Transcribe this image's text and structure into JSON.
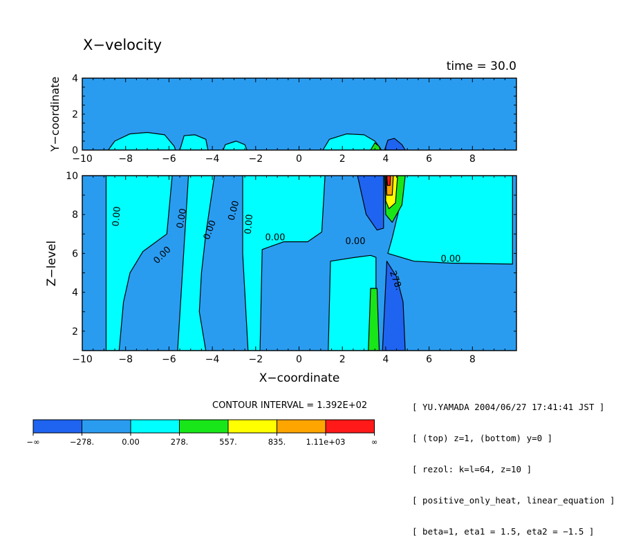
{
  "title": "X−velocity",
  "time_label": "time = 30.0",
  "contour_interval_label": "CONTOUR INTERVAL = 1.392E+02",
  "info_lines": [
    "[ YU.YAMADA 2004/06/27 17:41:41 JST ]",
    "[ (top) z=1, (bottom) y=0 ]",
    "[ rezol: k=l=64, z=10 ]",
    "[ positive_only_heat, linear_equation ]",
    "[ beta=1, eta1 = 1.5, eta2 = −1.5 ]"
  ],
  "colors": {
    "dark_blue": "#1e64f0",
    "mid_blue": "#2a9cf0",
    "cyan": "#00ffff",
    "green": "#19e619",
    "yellow": "#ffff00",
    "orange": "#ffa500",
    "red": "#ff1919"
  },
  "chart_data": [
    {
      "type": "heatmap",
      "panel": "top",
      "xlabel": "",
      "ylabel": "Y−coordinate",
      "xlim": [
        -10,
        10
      ],
      "ylim": [
        0,
        4
      ],
      "xticks": [
        "−10",
        "−8",
        "−6",
        "−4",
        "−2",
        "0",
        "2",
        "4",
        "6",
        "8"
      ],
      "xtick_values": [
        -10,
        -8,
        -6,
        -4,
        -2,
        0,
        2,
        4,
        6,
        8
      ],
      "yticks": [
        "0",
        "2",
        "4"
      ],
      "ytick_values": [
        0,
        2,
        4
      ],
      "background_level": "mid_blue",
      "regions": [
        {
          "level": "cyan",
          "points": [
            [
              -8.8,
              0
            ],
            [
              -8.5,
              0.5
            ],
            [
              -7.8,
              0.9
            ],
            [
              -7,
              0.98
            ],
            [
              -6.2,
              0.85
            ],
            [
              -5.75,
              0.2
            ],
            [
              -5.7,
              0
            ]
          ]
        },
        {
          "level": "cyan",
          "points": [
            [
              -5.5,
              0
            ],
            [
              -5.3,
              0.8
            ],
            [
              -4.8,
              0.85
            ],
            [
              -4.3,
              0.6
            ],
            [
              -4.2,
              0
            ]
          ]
        },
        {
          "level": "cyan",
          "points": [
            [
              -3.5,
              0
            ],
            [
              -3.4,
              0.3
            ],
            [
              -2.9,
              0.5
            ],
            [
              -2.5,
              0.3
            ],
            [
              -2.4,
              0
            ]
          ]
        },
        {
          "level": "cyan",
          "points": [
            [
              1.1,
              0
            ],
            [
              1.4,
              0.6
            ],
            [
              2.2,
              0.9
            ],
            [
              3.0,
              0.85
            ],
            [
              3.5,
              0.5
            ],
            [
              3.75,
              0.1
            ],
            [
              3.8,
              0
            ]
          ]
        },
        {
          "level": "green",
          "points": [
            [
              3.3,
              0
            ],
            [
              3.5,
              0.4
            ],
            [
              3.7,
              0.2
            ],
            [
              3.75,
              0
            ]
          ]
        },
        {
          "level": "dark_blue",
          "points": [
            [
              3.95,
              0
            ],
            [
              4.1,
              0.55
            ],
            [
              4.4,
              0.65
            ],
            [
              4.75,
              0.3
            ],
            [
              4.9,
              0
            ]
          ]
        }
      ]
    },
    {
      "type": "heatmap",
      "panel": "bottom",
      "xlabel": "X−coordinate",
      "ylabel": "Z−level",
      "xlim": [
        -10,
        10
      ],
      "ylim": [
        1,
        10
      ],
      "xticks": [
        "−10",
        "−8",
        "−6",
        "−4",
        "−2",
        "0",
        "2",
        "4",
        "6",
        "8"
      ],
      "xtick_values": [
        -10,
        -8,
        -6,
        -4,
        -2,
        0,
        2,
        4,
        6,
        8
      ],
      "yticks": [
        "2",
        "4",
        "6",
        "8",
        "10"
      ],
      "ytick_values": [
        2,
        4,
        6,
        8,
        10
      ],
      "background_level": "mid_blue",
      "regions": [
        {
          "level": "cyan",
          "points": [
            [
              -8.9,
              1
            ],
            [
              -8.9,
              10
            ],
            [
              -5.85,
              10
            ],
            [
              -6.1,
              7.0
            ],
            [
              -7.2,
              6.1
            ],
            [
              -7.8,
              5.0
            ],
            [
              -8.1,
              3.5
            ],
            [
              -8.3,
              1
            ]
          ]
        },
        {
          "level": "cyan",
          "points": [
            [
              -5.6,
              1
            ],
            [
              -5.1,
              10
            ],
            [
              -3.9,
              10
            ],
            [
              -4.3,
              7
            ],
            [
              -4.5,
              5
            ],
            [
              -4.6,
              3
            ],
            [
              -4.3,
              1
            ]
          ]
        },
        {
          "level": "cyan",
          "points": [
            [
              -2.6,
              10
            ],
            [
              1.2,
              10
            ],
            [
              1.05,
              7.1
            ],
            [
              0.4,
              6.6
            ],
            [
              -0.7,
              6.6
            ],
            [
              -1.7,
              6.2
            ],
            [
              -1.8,
              1
            ],
            [
              -2.35,
              1
            ],
            [
              -2.6,
              6
            ]
          ]
        },
        {
          "level": "cyan",
          "points": [
            [
              1.35,
              1
            ],
            [
              1.45,
              5.6
            ],
            [
              2.6,
              5.8
            ],
            [
              3.3,
              5.9
            ],
            [
              3.55,
              5.8
            ],
            [
              3.55,
              1
            ]
          ]
        },
        {
          "level": "cyan",
          "points": [
            [
              4.1,
              6.0
            ],
            [
              5.3,
              5.6
            ],
            [
              7.0,
              5.5
            ],
            [
              9.85,
              5.45
            ],
            [
              9.85,
              10
            ],
            [
              4.8,
              10
            ],
            [
              4.6,
              8.2
            ],
            [
              4.3,
              6.8
            ]
          ]
        },
        {
          "level": "dark_blue",
          "points": [
            [
              2.7,
              10
            ],
            [
              3.9,
              10
            ],
            [
              3.9,
              7.3
            ],
            [
              3.6,
              7.2
            ],
            [
              3.1,
              8.0
            ]
          ]
        },
        {
          "level": "dark_blue",
          "points": [
            [
              3.85,
              1
            ],
            [
              4.05,
              5.6
            ],
            [
              4.5,
              4.8
            ],
            [
              4.8,
              3.5
            ],
            [
              4.9,
              1
            ]
          ]
        },
        {
          "level": "green",
          "points": [
            [
              3.2,
              1
            ],
            [
              3.3,
              4.2
            ],
            [
              3.6,
              4.2
            ],
            [
              3.7,
              1
            ]
          ]
        },
        {
          "level": "green",
          "points": [
            [
              3.95,
              10
            ],
            [
              4.9,
              10
            ],
            [
              4.75,
              8.5
            ],
            [
              4.3,
              7.6
            ],
            [
              4.0,
              8.0
            ]
          ]
        },
        {
          "level": "yellow",
          "points": [
            [
              4.0,
              10
            ],
            [
              4.55,
              10
            ],
            [
              4.45,
              8.6
            ],
            [
              4.15,
              8.3
            ],
            [
              4.0,
              8.7
            ]
          ]
        },
        {
          "level": "orange",
          "points": [
            [
              4.02,
              10
            ],
            [
              4.35,
              10
            ],
            [
              4.3,
              9.0
            ],
            [
              4.05,
              9.0
            ]
          ]
        },
        {
          "level": "red",
          "points": [
            [
              4.05,
              10
            ],
            [
              4.22,
              10
            ],
            [
              4.2,
              9.5
            ],
            [
              4.08,
              9.5
            ]
          ]
        }
      ],
      "contour_labels": [
        {
          "text": "0.00",
          "x": -8.4,
          "y": 7.9,
          "rotation": -85
        },
        {
          "text": "0.00",
          "x": -5.4,
          "y": 7.8,
          "rotation": -80
        },
        {
          "text": "0.00",
          "x": -4.1,
          "y": 7.2,
          "rotation": -70
        },
        {
          "text": "0.00",
          "x": -3.0,
          "y": 8.2,
          "rotation": -75
        },
        {
          "text": "0.00",
          "x": -2.3,
          "y": 7.5,
          "rotation": -85
        },
        {
          "text": "0.00",
          "x": -6.3,
          "y": 5.9,
          "rotation": -45
        },
        {
          "text": "0.00",
          "x": -1.1,
          "y": 6.8,
          "rotation": 0
        },
        {
          "text": "0.00",
          "x": 2.6,
          "y": 6.6,
          "rotation": 0
        },
        {
          "text": "0.00",
          "x": 7.0,
          "y": 5.7,
          "rotation": 0
        },
        {
          "text": "278.",
          "x": 4.45,
          "y": 4.6,
          "rotation": 70
        }
      ]
    }
  ],
  "legend": {
    "levels": [
      "dark_blue",
      "mid_blue",
      "cyan",
      "green",
      "yellow",
      "orange",
      "red"
    ],
    "tick_labels": [
      "−∞",
      "−278.",
      "0.00",
      "278.",
      "557.",
      "835.",
      "1.11e+03",
      "∞"
    ]
  }
}
